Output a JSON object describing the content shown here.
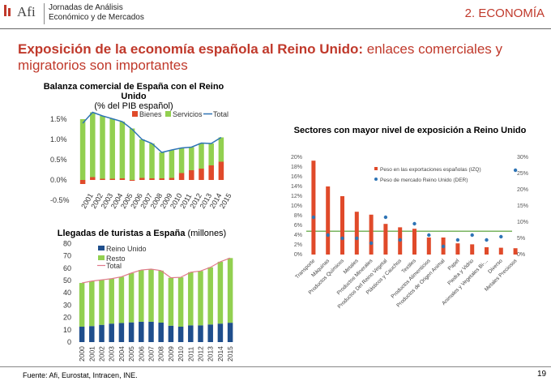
{
  "header": {
    "logo_text": "Afi",
    "line1": "Jornadas de Análisis",
    "line2": "Económico y de Mercados",
    "section": "2. ECONOMÍA"
  },
  "title": {
    "bold": "Exposición de la economía española al Reino Unido:",
    "normal": "enlaces comerciales y migratorios son importantes"
  },
  "footer": {
    "source": "Fuente: Afi, Eurostat, Intracen, INE.",
    "page": "19"
  },
  "colors": {
    "red": "#e04a2a",
    "green": "#92d050",
    "blue": "#1f5fae",
    "navy": "#1f4e8c",
    "line": "#2e74b5",
    "total_line": "#e07a8a",
    "ref_line": "#4b9a2a",
    "title_red": "#c0392b"
  },
  "chart_data": [
    {
      "type": "bar",
      "title": "Balanza comercial de España con el Reino Unido",
      "subtitle": "(% del PIB español)",
      "categories": [
        "2001",
        "2002",
        "2003",
        "2004",
        "2005",
        "2006",
        "2007",
        "2008",
        "2009",
        "2010",
        "2011",
        "2012",
        "2013",
        "2014",
        "2015"
      ],
      "series": [
        {
          "name": "Bienes",
          "values": [
            -0.1,
            0.07,
            0.03,
            0.03,
            0.04,
            -0.02,
            0.05,
            0.04,
            0.04,
            0.05,
            0.17,
            0.24,
            0.28,
            0.36,
            0.45
          ]
        },
        {
          "name": "Servicios",
          "values": [
            1.5,
            1.6,
            1.55,
            1.48,
            1.4,
            1.27,
            0.95,
            0.86,
            0.64,
            0.69,
            0.62,
            0.57,
            0.63,
            0.54,
            0.6
          ]
        },
        {
          "name": "Total",
          "values": [
            1.4,
            1.67,
            1.58,
            1.51,
            1.44,
            1.25,
            1.0,
            0.9,
            0.68,
            0.74,
            0.79,
            0.81,
            0.91,
            0.9,
            1.05
          ]
        }
      ],
      "yticks": [
        "1.5%",
        "1.0%",
        "0.5%",
        "0.0%",
        "-0.5%"
      ],
      "ylim": [
        -0.5,
        1.75
      ]
    },
    {
      "type": "bar",
      "title": "Llegadas de turistas a España",
      "title_suffix": "(millones)",
      "categories": [
        "2000",
        "2001",
        "2002",
        "2003",
        "2004",
        "2005",
        "2006",
        "2007",
        "2008",
        "2009",
        "2010",
        "2011",
        "2012",
        "2013",
        "2014",
        "2015"
      ],
      "series": [
        {
          "name": "Reino Unido",
          "values": [
            12.5,
            13.0,
            14.0,
            15.0,
            15.5,
            16.0,
            16.5,
            16.5,
            15.8,
            13.3,
            12.5,
            13.6,
            13.6,
            14.3,
            15.0,
            15.7
          ]
        },
        {
          "name": "Resto",
          "values": [
            35.5,
            36.5,
            36.5,
            36.5,
            37.5,
            40.0,
            42.0,
            42.7,
            42.2,
            38.9,
            40.1,
            43.1,
            44.1,
            46.4,
            50.2,
            52.5
          ]
        },
        {
          "name": "Total",
          "values": [
            48.0,
            49.5,
            50.5,
            51.5,
            53.0,
            56.0,
            58.5,
            59.2,
            58.0,
            52.2,
            52.6,
            56.7,
            57.7,
            60.7,
            65.2,
            68.2
          ]
        }
      ],
      "yticks": [
        "80",
        "70",
        "60",
        "50",
        "40",
        "30",
        "20",
        "10",
        "0"
      ],
      "ylim": [
        0,
        80
      ]
    },
    {
      "type": "bar",
      "title": "Sectores con mayor nivel de exposición a Reino Unido",
      "categories": [
        "Transporte",
        "Máquinas",
        "Productos Químicos",
        "Metales",
        "Productos Minerales",
        "Productos Del Reino Vegetal",
        "Plásticos y Cauchos",
        "Textiles",
        "Productos Alimenticios",
        "Productos de Origen Animal",
        "Papel",
        "Piedra y Vidrio",
        "Animales y Vegetales Bi-...",
        "Diverso",
        "Metales Preciosos"
      ],
      "series": [
        {
          "name": "Peso en las exportaciones españolas (IZQ)",
          "values": [
            19.3,
            14.0,
            12.0,
            8.8,
            8.2,
            6.3,
            5.6,
            5.3,
            3.5,
            3.5,
            2.3,
            2.1,
            1.5,
            1.4,
            1.3
          ]
        },
        {
          "name": "Peso de mercado Reino Unido (DER)",
          "values": [
            11.5,
            6.0,
            5.0,
            5.0,
            3.5,
            11.5,
            4.5,
            9.5,
            6.0,
            2.5,
            4.5,
            6.0,
            4.5,
            5.5,
            26.0
          ]
        }
      ],
      "yticks_left": [
        "20%",
        "18%",
        "16%",
        "14%",
        "12%",
        "10%",
        "8%",
        "6%",
        "4%",
        "2%",
        "0%"
      ],
      "yticks_right": [
        "30%",
        "25%",
        "20%",
        "15%",
        "10%",
        "5%",
        "0%"
      ],
      "ylim_left": [
        0,
        20
      ],
      "ylim_right": [
        0,
        30
      ],
      "reference_line_left": 4.8
    }
  ]
}
